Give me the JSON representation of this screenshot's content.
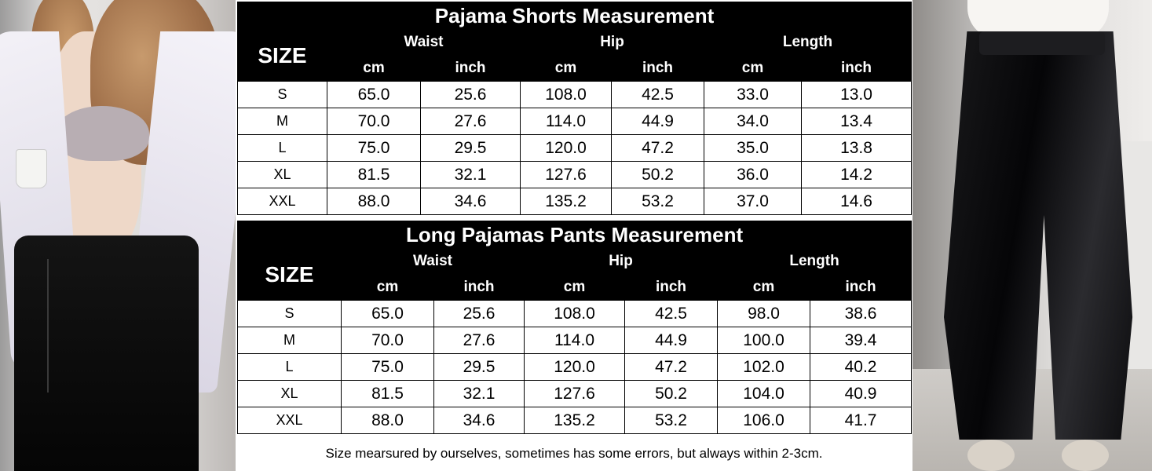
{
  "shorts": {
    "title": "Pajama Shorts Measurement",
    "size_label": "SIZE",
    "groups": [
      "Waist",
      "Hip",
      "Length"
    ],
    "units": [
      "cm",
      "inch",
      "cm",
      "inch",
      "cm",
      "inch"
    ],
    "rows": [
      {
        "size": "S",
        "values": [
          "65.0",
          "25.6",
          "108.0",
          "42.5",
          "33.0",
          "13.0"
        ]
      },
      {
        "size": "M",
        "values": [
          "70.0",
          "27.6",
          "114.0",
          "44.9",
          "34.0",
          "13.4"
        ]
      },
      {
        "size": "L",
        "values": [
          "75.0",
          "29.5",
          "120.0",
          "47.2",
          "35.0",
          "13.8"
        ]
      },
      {
        "size": "XL",
        "values": [
          "81.5",
          "32.1",
          "127.6",
          "50.2",
          "36.0",
          "14.2"
        ]
      },
      {
        "size": "XXL",
        "values": [
          "88.0",
          "34.6",
          "135.2",
          "53.2",
          "37.0",
          "14.6"
        ]
      }
    ]
  },
  "long": {
    "title": "Long Pajamas Pants Measurement",
    "size_label": "SIZE",
    "groups": [
      "Waist",
      "Hip",
      "Length"
    ],
    "units": [
      "cm",
      "inch",
      "cm",
      "inch",
      "cm",
      "inch"
    ],
    "rows": [
      {
        "size": "S",
        "values": [
          "65.0",
          "25.6",
          "108.0",
          "42.5",
          "98.0",
          "38.6"
        ]
      },
      {
        "size": "M",
        "values": [
          "70.0",
          "27.6",
          "114.0",
          "44.9",
          "100.0",
          "39.4"
        ]
      },
      {
        "size": "L",
        "values": [
          "75.0",
          "29.5",
          "120.0",
          "47.2",
          "102.0",
          "40.2"
        ]
      },
      {
        "size": "XL",
        "values": [
          "81.5",
          "32.1",
          "127.6",
          "50.2",
          "104.0",
          "40.9"
        ]
      },
      {
        "size": "XXL",
        "values": [
          "88.0",
          "34.6",
          "135.2",
          "53.2",
          "106.0",
          "41.7"
        ]
      }
    ]
  },
  "note": "Size mearsured by ourselves, sometimes has some errors, but always within 2-3cm.",
  "colors": {
    "header_bg": "#000000",
    "header_text": "#ffffff",
    "cell_bg": "#ffffff",
    "cell_text": "#000000"
  }
}
